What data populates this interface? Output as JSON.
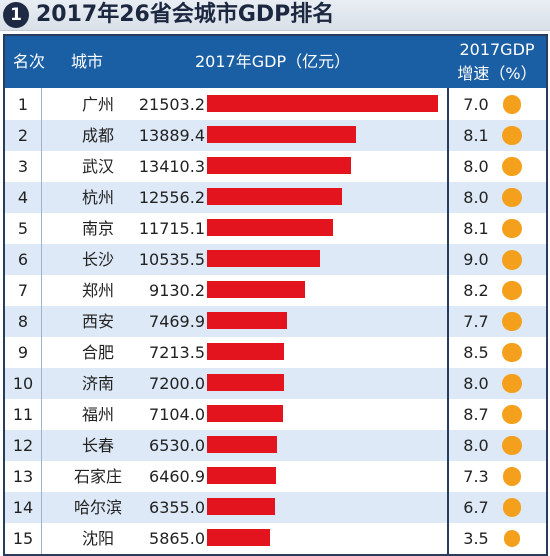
{
  "title": {
    "badge": "1",
    "text": "2017年26省会城市GDP排名"
  },
  "header": {
    "rank": "名次",
    "city": "城市",
    "gdp": "2017年GDP（亿元）",
    "growth_line1": "2017GDP",
    "growth_line2": "增速（%）"
  },
  "colors": {
    "header_bg": "#1a5ea4",
    "bar": "#e4141e",
    "dot": "#f4a01c",
    "row_alt": "#dde9f6"
  },
  "chart_data": {
    "type": "bar",
    "title": "2017年26省会城市GDP排名",
    "categories": [
      "广州",
      "成都",
      "武汉",
      "杭州",
      "南京",
      "长沙",
      "郑州",
      "西安",
      "合肥",
      "济南",
      "福州",
      "长春",
      "石家庄",
      "哈尔滨",
      "沈阳"
    ],
    "ranks": [
      "1",
      "2",
      "3",
      "4",
      "5",
      "6",
      "7",
      "8",
      "9",
      "10",
      "11",
      "12",
      "13",
      "14",
      "15"
    ],
    "series": [
      {
        "name": "2017年GDP（亿元）",
        "values": [
          21503.2,
          13889.4,
          13410.3,
          12556.2,
          11715.1,
          10535.5,
          9130.2,
          7469.9,
          7213.5,
          7200.0,
          7104.0,
          6530.0,
          6460.9,
          6355.0,
          5865.0
        ],
        "labels": [
          "21503.2",
          "13889.4",
          "13410.3",
          "12556.2",
          "11715.1",
          "10535.5",
          "9130.2",
          "7469.9",
          "7213.5",
          "7200.0",
          "7104.0",
          "6530.0",
          "6460.9",
          "6355.0",
          "5865.0"
        ]
      },
      {
        "name": "2017GDP增速（%）",
        "values": [
          7.0,
          8.1,
          8.0,
          8.0,
          8.1,
          9.0,
          8.2,
          7.7,
          8.5,
          8.0,
          8.7,
          8.0,
          7.3,
          6.7,
          3.5
        ],
        "labels": [
          "7.0",
          "8.1",
          "8.0",
          "8.0",
          "8.1",
          "9.0",
          "8.2",
          "7.7",
          "8.5",
          "8.0",
          "8.7",
          "8.0",
          "7.3",
          "6.7",
          "3.5"
        ]
      }
    ]
  }
}
